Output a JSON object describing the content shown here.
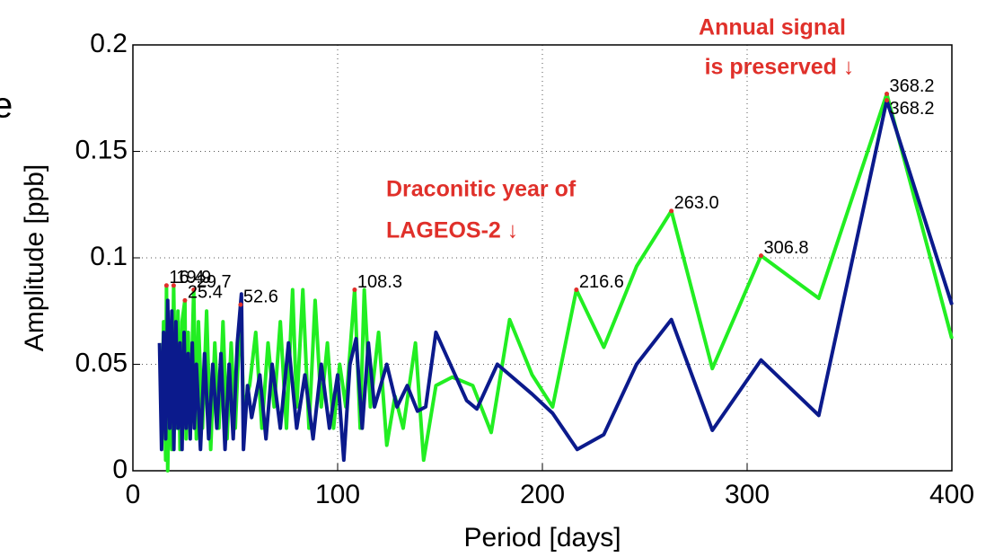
{
  "chart_data": {
    "type": "line",
    "xlabel": "Period [days]",
    "ylabel": "Amplitude [ppb]",
    "edge_text": "e",
    "annotations": [
      "Annual signal",
      "is preserved ↓",
      "Draconitic year of",
      "LAGEOS-2 ↓"
    ],
    "xlim": [
      0,
      400
    ],
    "xticks": [
      0,
      100,
      200,
      300,
      400
    ],
    "ylim": [
      0,
      0.2
    ],
    "yticks": [
      0,
      0.05,
      0.1,
      0.15,
      0.2
    ],
    "grid": true,
    "series": [
      {
        "color": "#22ee22",
        "x": [
          14,
          15,
          16,
          16.4,
          17,
          18,
          19,
          19.9,
          21,
          22,
          23,
          24,
          25.4,
          26,
          27,
          28,
          29.7,
          31,
          32,
          34,
          36,
          38,
          40,
          42,
          44,
          46,
          48,
          50,
          52.6,
          54,
          57,
          60,
          63,
          66,
          69,
          72,
          75,
          78,
          80,
          83,
          86,
          89,
          92,
          95,
          98,
          101,
          104,
          108.3,
          111,
          113,
          116,
          120,
          124,
          128,
          132,
          138,
          142,
          148,
          156,
          166,
          175,
          184,
          195,
          205,
          216.6,
          230,
          246,
          263,
          283,
          306.8,
          335,
          368.2,
          400
        ],
        "values": [
          0.02,
          0.07,
          0.005,
          0.087,
          0.0,
          0.06,
          0.01,
          0.087,
          0.02,
          0.075,
          0.01,
          0.07,
          0.08,
          0.015,
          0.065,
          0.02,
          0.085,
          0.015,
          0.07,
          0.02,
          0.075,
          0.01,
          0.06,
          0.02,
          0.07,
          0.015,
          0.06,
          0.02,
          0.078,
          0.03,
          0.04,
          0.065,
          0.02,
          0.06,
          0.03,
          0.07,
          0.02,
          0.085,
          0.03,
          0.085,
          0.02,
          0.08,
          0.03,
          0.06,
          0.02,
          0.05,
          0.03,
          0.085,
          0.02,
          0.085,
          0.03,
          0.065,
          0.012,
          0.035,
          0.02,
          0.06,
          0.005,
          0.04,
          0.044,
          0.04,
          0.018,
          0.071,
          0.045,
          0.03,
          0.085,
          0.058,
          0.096,
          0.122,
          0.048,
          0.101,
          0.081,
          0.177,
          0.062
        ]
      },
      {
        "color": "#0b1a8c",
        "x": [
          13,
          14,
          15,
          16,
          17,
          18,
          19,
          20,
          21,
          22,
          23,
          24,
          25,
          26,
          27,
          28,
          29,
          30,
          31,
          33,
          35,
          37,
          39,
          41,
          43,
          45,
          47,
          49,
          51,
          53,
          54,
          56,
          58,
          62,
          65,
          68,
          72,
          76,
          80,
          84,
          88,
          92,
          96,
          100,
          103,
          106,
          109,
          112,
          115,
          118,
          124,
          129,
          134,
          139,
          143,
          148,
          163,
          168,
          178,
          195,
          205,
          217,
          230,
          246,
          263,
          283,
          306.8,
          335,
          368.2,
          400
        ],
        "values": [
          0.06,
          0.01,
          0.065,
          0.015,
          0.08,
          0.02,
          0.075,
          0.01,
          0.07,
          0.02,
          0.06,
          0.01,
          0.065,
          0.02,
          0.055,
          0.015,
          0.06,
          0.02,
          0.05,
          0.01,
          0.055,
          0.015,
          0.05,
          0.02,
          0.055,
          0.01,
          0.05,
          0.015,
          0.06,
          0.083,
          0.01,
          0.04,
          0.025,
          0.045,
          0.015,
          0.05,
          0.02,
          0.06,
          0.02,
          0.045,
          0.015,
          0.05,
          0.02,
          0.045,
          0.005,
          0.05,
          0.062,
          0.02,
          0.06,
          0.03,
          0.05,
          0.03,
          0.04,
          0.028,
          0.03,
          0.065,
          0.033,
          0.029,
          0.05,
          0.036,
          0.027,
          0.01,
          0.017,
          0.05,
          0.071,
          0.019,
          0.052,
          0.026,
          0.174,
          0.078
        ]
      }
    ],
    "peak_color": "#e0302a",
    "peaks": [
      {
        "x": 16.4,
        "y": 0.087,
        "label": "16.4"
      },
      {
        "x": 19.9,
        "y": 0.087,
        "label": "19.9"
      },
      {
        "x": 29.7,
        "y": 0.085,
        "label": "29.7"
      },
      {
        "x": 25.4,
        "y": 0.08,
        "label": "25.4"
      },
      {
        "x": 52.6,
        "y": 0.078,
        "label": "52.6"
      },
      {
        "x": 108.3,
        "y": 0.085,
        "label": "108.3"
      },
      {
        "x": 216.6,
        "y": 0.085,
        "label": "216.6"
      },
      {
        "x": 263,
        "y": 0.122,
        "label": "263.0"
      },
      {
        "x": 306.8,
        "y": 0.101,
        "label": "306.8"
      },
      {
        "x": 368.2,
        "y": 0.177,
        "label": "368.2"
      },
      {
        "x": 368.2,
        "y": 0.174,
        "label": "368.2"
      }
    ]
  }
}
